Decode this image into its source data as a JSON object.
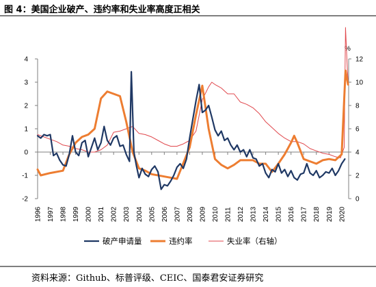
{
  "header": {
    "figure_title": "图 4：美国企业破产、违约率和失业率高度正相关"
  },
  "footer": {
    "source": "资料来源：Github、标普评级、CEIC、国泰君安证券研究"
  },
  "colors": {
    "bankruptcy": "#1f3864",
    "default": "#ed7d31",
    "unemployment": "#e0474c",
    "axis": "#7f7f7f",
    "rule": "#7f7f7f"
  },
  "chart_data": {
    "type": "line",
    "title": "",
    "right_axis_unit": "%",
    "x_ticks": [
      "1996",
      "1997",
      "1998",
      "1999",
      "2000",
      "2001",
      "2002",
      "2003",
      "2004",
      "2005",
      "2006",
      "2007",
      "2008",
      "2009",
      "2010",
      "2011",
      "2012",
      "2013",
      "2014",
      "2015",
      "2016",
      "2017",
      "2018",
      "2019",
      "2020"
    ],
    "y_left": {
      "ticks": [
        "-2",
        "-1",
        "0",
        "1",
        "2",
        "3",
        "4"
      ],
      "min": -2,
      "max": 4
    },
    "y_right": {
      "ticks": [
        "0",
        "2",
        "4",
        "6",
        "8",
        "10",
        "12"
      ],
      "min": 0,
      "max": 12
    },
    "legend_position": "bottom",
    "series": [
      {
        "name": "破产申请量",
        "axis": "left",
        "style": "thick",
        "points": [
          [
            1996.0,
            0.7
          ],
          [
            1996.25,
            0.6
          ],
          [
            1996.5,
            0.75
          ],
          [
            1996.75,
            0.7
          ],
          [
            1997.0,
            0.75
          ],
          [
            1997.25,
            -0.15
          ],
          [
            1997.5,
            -0.05
          ],
          [
            1997.75,
            -0.35
          ],
          [
            1998.0,
            -0.55
          ],
          [
            1998.25,
            -0.6
          ],
          [
            1998.5,
            -0.1
          ],
          [
            1998.75,
            0.7
          ],
          [
            1999.0,
            0.0
          ],
          [
            1999.25,
            -0.15
          ],
          [
            1999.5,
            0.4
          ],
          [
            1999.75,
            0.5
          ],
          [
            2000.0,
            -0.2
          ],
          [
            2000.25,
            0.2
          ],
          [
            2000.5,
            0.6
          ],
          [
            2000.75,
            0.1
          ],
          [
            2001.0,
            0.4
          ],
          [
            2001.25,
            1.1
          ],
          [
            2001.5,
            0.5
          ],
          [
            2001.75,
            0.3
          ],
          [
            2002.0,
            0.6
          ],
          [
            2002.25,
            0.7
          ],
          [
            2002.5,
            0.25
          ],
          [
            2002.75,
            0.3
          ],
          [
            2003.0,
            -0.1
          ],
          [
            2003.25,
            -0.4
          ],
          [
            2003.4,
            3.45
          ],
          [
            2003.6,
            0.0
          ],
          [
            2003.8,
            -0.6
          ],
          [
            2004.0,
            -1.1
          ],
          [
            2004.25,
            -0.7
          ],
          [
            2004.5,
            -0.95
          ],
          [
            2004.75,
            -1.05
          ],
          [
            2005.0,
            -0.75
          ],
          [
            2005.25,
            -0.6
          ],
          [
            2005.5,
            -0.85
          ],
          [
            2005.75,
            -1.6
          ],
          [
            2006.0,
            -1.4
          ],
          [
            2006.25,
            -1.45
          ],
          [
            2006.5,
            -1.25
          ],
          [
            2006.75,
            -1.0
          ],
          [
            2007.0,
            -0.65
          ],
          [
            2007.25,
            -0.5
          ],
          [
            2007.5,
            -0.7
          ],
          [
            2007.75,
            -0.3
          ],
          [
            2008.0,
            0.6
          ],
          [
            2008.25,
            1.4
          ],
          [
            2008.5,
            2.2
          ],
          [
            2008.75,
            2.9
          ],
          [
            2009.0,
            1.7
          ],
          [
            2009.25,
            1.8
          ],
          [
            2009.5,
            2.0
          ],
          [
            2009.75,
            1.5
          ],
          [
            2010.0,
            0.95
          ],
          [
            2010.25,
            0.7
          ],
          [
            2010.5,
            0.9
          ],
          [
            2010.75,
            0.5
          ],
          [
            2011.0,
            0.6
          ],
          [
            2011.25,
            0.3
          ],
          [
            2011.5,
            0.1
          ],
          [
            2011.75,
            0.3
          ],
          [
            2012.0,
            0.0
          ],
          [
            2012.25,
            0.1
          ],
          [
            2012.5,
            -0.2
          ],
          [
            2012.75,
            0.1
          ],
          [
            2013.0,
            -0.25
          ],
          [
            2013.25,
            -0.3
          ],
          [
            2013.5,
            -0.6
          ],
          [
            2013.75,
            -0.5
          ],
          [
            2014.0,
            -0.9
          ],
          [
            2014.25,
            -1.1
          ],
          [
            2014.5,
            -0.75
          ],
          [
            2014.75,
            -0.85
          ],
          [
            2015.0,
            -0.5
          ],
          [
            2015.25,
            -0.9
          ],
          [
            2015.5,
            -0.75
          ],
          [
            2015.75,
            -1.05
          ],
          [
            2016.0,
            -0.8
          ],
          [
            2016.25,
            -1.1
          ],
          [
            2016.5,
            -1.2
          ],
          [
            2016.75,
            -0.95
          ],
          [
            2017.0,
            -0.9
          ],
          [
            2017.25,
            -0.5
          ],
          [
            2017.5,
            -0.9
          ],
          [
            2017.75,
            -1.0
          ],
          [
            2018.0,
            -0.8
          ],
          [
            2018.25,
            -1.1
          ],
          [
            2018.5,
            -1.0
          ],
          [
            2018.75,
            -0.85
          ],
          [
            2019.0,
            -0.9
          ],
          [
            2019.25,
            -0.7
          ],
          [
            2019.5,
            -1.0
          ],
          [
            2019.75,
            -0.8
          ],
          [
            2020.0,
            -0.5
          ],
          [
            2020.25,
            -0.3
          ]
        ]
      },
      {
        "name": "违约率",
        "axis": "left",
        "style": "thick",
        "points": [
          [
            1996.0,
            -0.75
          ],
          [
            1996.25,
            -1.0
          ],
          [
            1997.0,
            -0.9
          ],
          [
            1998.0,
            -0.8
          ],
          [
            1998.5,
            -0.1
          ],
          [
            1999.0,
            0.4
          ],
          [
            1999.5,
            0.65
          ],
          [
            2000.0,
            0.75
          ],
          [
            2000.5,
            1.0
          ],
          [
            2001.0,
            2.3
          ],
          [
            2001.5,
            2.6
          ],
          [
            2002.0,
            2.5
          ],
          [
            2002.5,
            2.4
          ],
          [
            2003.0,
            1.3
          ],
          [
            2003.5,
            0.0
          ],
          [
            2004.0,
            -0.7
          ],
          [
            2004.5,
            -0.8
          ],
          [
            2005.0,
            -0.95
          ],
          [
            2006.0,
            -1.05
          ],
          [
            2007.0,
            -1.15
          ],
          [
            2008.0,
            0.2
          ],
          [
            2008.5,
            1.6
          ],
          [
            2009.0,
            2.85
          ],
          [
            2009.5,
            1.0
          ],
          [
            2010.0,
            -0.3
          ],
          [
            2010.5,
            -0.55
          ],
          [
            2011.0,
            -0.7
          ],
          [
            2011.5,
            -0.55
          ],
          [
            2012.0,
            -0.35
          ],
          [
            2012.5,
            -0.35
          ],
          [
            2013.0,
            -0.35
          ],
          [
            2013.5,
            -0.5
          ],
          [
            2014.0,
            -0.5
          ],
          [
            2014.5,
            -0.85
          ],
          [
            2015.0,
            -0.5
          ],
          [
            2015.5,
            -0.1
          ],
          [
            2016.0,
            0.4
          ],
          [
            2016.25,
            0.7
          ],
          [
            2016.5,
            0.4
          ],
          [
            2017.0,
            -0.3
          ],
          [
            2017.5,
            -0.4
          ],
          [
            2018.0,
            -0.5
          ],
          [
            2018.5,
            -0.35
          ],
          [
            2019.0,
            -0.3
          ],
          [
            2019.5,
            -0.35
          ],
          [
            2020.0,
            -0.1
          ],
          [
            2020.3,
            3.5
          ],
          [
            2020.5,
            2.9
          ]
        ]
      },
      {
        "name": "失业率（右轴）",
        "axis": "right",
        "style": "thin",
        "points": [
          [
            1996.0,
            5.5
          ],
          [
            1996.5,
            5.3
          ],
          [
            1997.0,
            5.1
          ],
          [
            1997.5,
            4.9
          ],
          [
            1998.0,
            4.6
          ],
          [
            1998.5,
            4.5
          ],
          [
            1999.0,
            4.3
          ],
          [
            1999.5,
            4.2
          ],
          [
            2000.0,
            4.0
          ],
          [
            2000.5,
            4.0
          ],
          [
            2001.0,
            4.2
          ],
          [
            2001.5,
            4.6
          ],
          [
            2002.0,
            5.7
          ],
          [
            2002.5,
            5.8
          ],
          [
            2003.0,
            6.0
          ],
          [
            2003.5,
            6.2
          ],
          [
            2004.0,
            5.6
          ],
          [
            2004.5,
            5.5
          ],
          [
            2005.0,
            5.3
          ],
          [
            2005.5,
            5.0
          ],
          [
            2006.0,
            4.7
          ],
          [
            2006.5,
            4.5
          ],
          [
            2007.0,
            4.5
          ],
          [
            2007.5,
            4.7
          ],
          [
            2008.0,
            5.0
          ],
          [
            2008.5,
            5.8
          ],
          [
            2009.0,
            8.5
          ],
          [
            2009.5,
            9.6
          ],
          [
            2009.75,
            10.0
          ],
          [
            2010.0,
            9.8
          ],
          [
            2010.5,
            9.5
          ],
          [
            2011.0,
            9.0
          ],
          [
            2011.5,
            9.0
          ],
          [
            2012.0,
            8.3
          ],
          [
            2012.5,
            8.1
          ],
          [
            2013.0,
            7.8
          ],
          [
            2013.5,
            7.3
          ],
          [
            2014.0,
            6.6
          ],
          [
            2014.5,
            6.1
          ],
          [
            2015.0,
            5.6
          ],
          [
            2015.5,
            5.2
          ],
          [
            2016.0,
            4.9
          ],
          [
            2016.5,
            4.9
          ],
          [
            2017.0,
            4.7
          ],
          [
            2017.5,
            4.3
          ],
          [
            2018.0,
            4.1
          ],
          [
            2018.5,
            3.9
          ],
          [
            2019.0,
            3.8
          ],
          [
            2019.5,
            3.6
          ],
          [
            2019.9,
            3.5
          ],
          [
            2020.2,
            4.4
          ],
          [
            2020.3,
            14.7
          ],
          [
            2020.45,
            11.1
          ],
          [
            2020.5,
            10.2
          ]
        ]
      }
    ],
    "legend": [
      {
        "label": "破产申请量",
        "series": 0
      },
      {
        "label": "违约率",
        "series": 1
      },
      {
        "label": "失业率（右轴）",
        "series": 2
      }
    ]
  }
}
